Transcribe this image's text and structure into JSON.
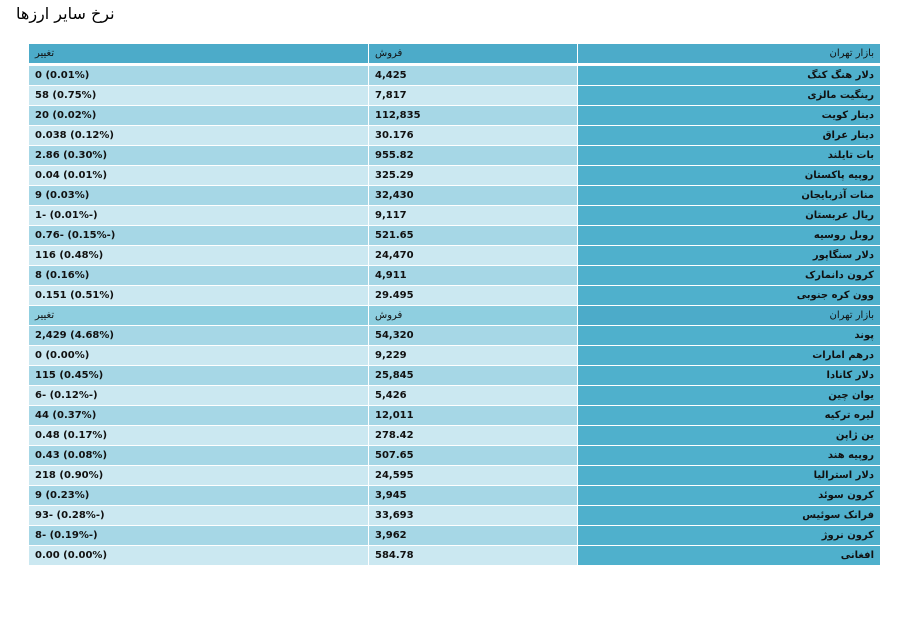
{
  "title": "نرخ سایر ارزها",
  "header": {
    "market": "بازار تهران",
    "sell": "فروش",
    "change": "تغییر"
  },
  "table1": [
    {
      "name": "دلار هنگ کنگ",
      "sell": "4,425",
      "change": "(0.01%) 0"
    },
    {
      "name": "رینگیت مالزی",
      "sell": "7,817",
      "change": "(0.75%) 58"
    },
    {
      "name": "دینار کویت",
      "sell": "112,835",
      "change": "(0.02%) 20"
    },
    {
      "name": "دینار عراق",
      "sell": "30.176",
      "change": "(0.12%) 0.038"
    },
    {
      "name": "بات تایلند",
      "sell": "955.82",
      "change": "(0.30%) 2.86"
    },
    {
      "name": "روپیه پاکستان",
      "sell": "325.29",
      "change": "(0.01%) 0.04"
    },
    {
      "name": "منات آذربایجان",
      "sell": "32,430",
      "change": "(0.03%) 9"
    },
    {
      "name": "ریال عربستان",
      "sell": "9,117",
      "change": "(-0.01%) -1"
    },
    {
      "name": "روبل روسیه",
      "sell": "521.65",
      "change": "(-0.15%) -0.76"
    },
    {
      "name": "دلار سنگاپور",
      "sell": "24,470",
      "change": "(0.48%) 116"
    },
    {
      "name": "کرون دانمارک",
      "sell": "4,911",
      "change": "(0.16%) 8"
    },
    {
      "name": "وون کره جنوبی",
      "sell": "29.495",
      "change": "(0.51%) 0.151"
    }
  ],
  "table2": [
    {
      "name": "پوند",
      "sell": "54,320",
      "change": "(4.68%) 2,429"
    },
    {
      "name": "درهم امارات",
      "sell": "9,229",
      "change": "(0.00%) 0"
    },
    {
      "name": "دلار کانادا",
      "sell": "25,845",
      "change": "(0.45%) 115"
    },
    {
      "name": "یوان چین",
      "sell": "5,426",
      "change": "(-0.12%) -6"
    },
    {
      "name": "لیره ترکیه",
      "sell": "12,011",
      "change": "(0.37%) 44"
    },
    {
      "name": "ین ژاپن",
      "sell": "278.42",
      "change": "(0.17%) 0.48"
    },
    {
      "name": "روپیه هند",
      "sell": "507.65",
      "change": "(0.08%) 0.43"
    },
    {
      "name": "دلار استرالیا",
      "sell": "24,595",
      "change": "(0.90%) 218"
    },
    {
      "name": "کرون سوئد",
      "sell": "3,945",
      "change": "(0.23%) 9"
    },
    {
      "name": "فرانک سوئیس",
      "sell": "33,693",
      "change": "(-0.28%) -93"
    },
    {
      "name": "کرون نروژ",
      "sell": "3,962",
      "change": "(-0.19%) -8"
    },
    {
      "name": "افغانی",
      "sell": "584.78",
      "change": "(0.00%) 0.00"
    }
  ],
  "colors": {
    "name_column": "#4fb0cc",
    "row_odd": "#a6d7e6",
    "row_even": "#cbe8f1"
  }
}
